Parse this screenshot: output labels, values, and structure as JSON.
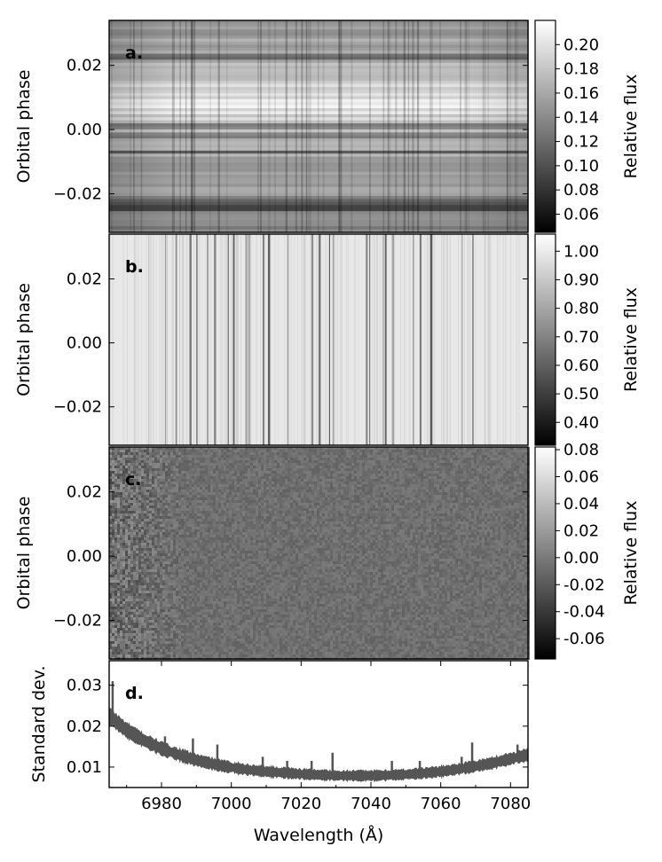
{
  "chart_data": [
    {
      "id": "a",
      "type": "heatmap",
      "panel_label": "a.",
      "ylabel": "Orbital phase",
      "yticks": [
        0.02,
        0.0,
        -0.02
      ],
      "ytick_labels": [
        "0.02",
        "0.00",
        "−0.02"
      ],
      "ylim": [
        -0.032,
        0.034
      ],
      "xlim": [
        6965,
        7085
      ],
      "colormap": "gray",
      "colorbar": {
        "label": "Relative flux",
        "range": [
          0.045,
          0.22
        ],
        "ticks": [
          0.06,
          0.08,
          0.1,
          0.12,
          0.14,
          0.16,
          0.18,
          0.2
        ],
        "tick_labels": [
          "0.06",
          "0.08",
          "0.10",
          "0.12",
          "0.14",
          "0.16",
          "0.18",
          "0.20"
        ]
      },
      "description_level": "flux varies strongly with orbital phase (horizontal banding); brightest near phase 0.007"
    },
    {
      "id": "b",
      "type": "heatmap",
      "panel_label": "b.",
      "ylabel": "Orbital phase",
      "yticks": [
        0.02,
        0.0,
        -0.02
      ],
      "ytick_labels": [
        "0.02",
        "0.00",
        "−0.02"
      ],
      "ylim": [
        -0.032,
        0.034
      ],
      "xlim": [
        6965,
        7085
      ],
      "colormap": "gray",
      "colorbar": {
        "label": "Relative flux",
        "range": [
          0.32,
          1.06
        ],
        "ticks": [
          0.4,
          0.5,
          0.6,
          0.7,
          0.8,
          0.9,
          1.0
        ],
        "tick_labels": [
          "0.40",
          "0.50",
          "0.60",
          "0.70",
          "0.80",
          "0.90",
          "1.00"
        ]
      },
      "telluric_lines": [
        6981,
        6984,
        6988,
        6990,
        6993,
        6995,
        6999,
        7000.5,
        7004,
        7005,
        7009,
        7010.5,
        7016,
        7023,
        7025,
        7028,
        7029,
        7038.5,
        7039.5,
        7044,
        7046,
        7052,
        7054,
        7057,
        7066,
        7069
      ]
    },
    {
      "id": "c",
      "type": "heatmap",
      "panel_label": "c.",
      "ylabel": "Orbital phase",
      "yticks": [
        0.02,
        0.0,
        -0.02
      ],
      "ytick_labels": [
        "0.02",
        "0.00",
        "−0.02"
      ],
      "ylim": [
        -0.032,
        0.034
      ],
      "xlim": [
        6965,
        7085
      ],
      "colormap": "gray",
      "colorbar": {
        "label": "Relative flux",
        "range": [
          -0.075,
          0.082
        ],
        "ticks": [
          0.08,
          0.06,
          0.04,
          0.02,
          0.0,
          -0.02,
          -0.04,
          -0.06
        ],
        "tick_labels": [
          "0.08",
          "0.06",
          "0.04",
          "0.02",
          "0.00",
          "-0.02",
          "-0.04",
          "-0.06"
        ]
      },
      "description_level": "residual noise centred on 0.00"
    },
    {
      "id": "d",
      "type": "line",
      "panel_label": "d.",
      "ylabel": "Standard dev.",
      "xlabel": "Wavelength (Å)",
      "xlim": [
        6965,
        7085
      ],
      "ylim": [
        0.005,
        0.036
      ],
      "xticks": [
        6980,
        7000,
        7020,
        7040,
        7060,
        7080
      ],
      "xtick_labels": [
        "6980",
        "7000",
        "7020",
        "7040",
        "7060",
        "7080"
      ],
      "yticks": [
        0.01,
        0.02,
        0.03
      ],
      "ytick_labels": [
        "0.01",
        "0.02",
        "0.03"
      ],
      "x": [
        6965,
        6970,
        6975,
        6980,
        6985,
        6990,
        6995,
        7000,
        7005,
        7010,
        7015,
        7020,
        7025,
        7030,
        7035,
        7040,
        7045,
        7050,
        7055,
        7060,
        7065,
        7070,
        7075,
        7080,
        7085
      ],
      "y": [
        0.0225,
        0.019,
        0.0165,
        0.0145,
        0.013,
        0.0117,
        0.0107,
        0.0099,
        0.0093,
        0.0089,
        0.0086,
        0.0083,
        0.0081,
        0.0079,
        0.0079,
        0.0079,
        0.008,
        0.0082,
        0.0085,
        0.0089,
        0.0095,
        0.0102,
        0.011,
        0.012,
        0.013
      ],
      "spikes": [
        {
          "x": 6966,
          "y": 0.031
        },
        {
          "x": 6981,
          "y": 0.0175
        },
        {
          "x": 6989,
          "y": 0.017
        },
        {
          "x": 6996,
          "y": 0.0155
        },
        {
          "x": 7009,
          "y": 0.0125
        },
        {
          "x": 7016,
          "y": 0.0115
        },
        {
          "x": 7023,
          "y": 0.0115
        },
        {
          "x": 7029,
          "y": 0.0135
        },
        {
          "x": 7046,
          "y": 0.0115
        },
        {
          "x": 7054,
          "y": 0.0115
        },
        {
          "x": 7066,
          "y": 0.0125
        },
        {
          "x": 7069,
          "y": 0.016
        },
        {
          "x": 7082,
          "y": 0.0155
        }
      ],
      "band_halfwidth": 0.0011,
      "color": "#555555"
    }
  ]
}
